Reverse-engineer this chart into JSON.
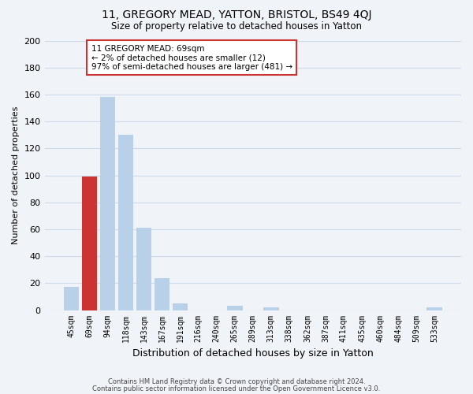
{
  "title_line1": "11, GREGORY MEAD, YATTON, BRISTOL, BS49 4QJ",
  "title_line2": "Size of property relative to detached houses in Yatton",
  "xlabel": "Distribution of detached houses by size in Yatton",
  "ylabel": "Number of detached properties",
  "bar_labels": [
    "45sqm",
    "69sqm",
    "94sqm",
    "118sqm",
    "143sqm",
    "167sqm",
    "191sqm",
    "216sqm",
    "240sqm",
    "265sqm",
    "289sqm",
    "313sqm",
    "338sqm",
    "362sqm",
    "387sqm",
    "411sqm",
    "435sqm",
    "460sqm",
    "484sqm",
    "509sqm",
    "533sqm"
  ],
  "bar_values": [
    17,
    99,
    158,
    130,
    61,
    24,
    5,
    0,
    0,
    3,
    0,
    2,
    0,
    0,
    0,
    0,
    0,
    0,
    0,
    0,
    2
  ],
  "bar_color": "#b8d0e8",
  "highlight_bar_index": 1,
  "highlight_color": "#cc3333",
  "ylim": [
    0,
    200
  ],
  "yticks": [
    0,
    20,
    40,
    60,
    80,
    100,
    120,
    140,
    160,
    180,
    200
  ],
  "annotation_title": "11 GREGORY MEAD: 69sqm",
  "annotation_line1": "← 2% of detached houses are smaller (12)",
  "annotation_line2": "97% of semi-detached houses are larger (481) →",
  "annotation_box_color": "#ffffff",
  "annotation_box_edge": "#cc3333",
  "footer_line1": "Contains HM Land Registry data © Crown copyright and database right 2024.",
  "footer_line2": "Contains public sector information licensed under the Open Government Licence v3.0.",
  "background_color": "#f0f4f8",
  "grid_color": "#ccdaec"
}
